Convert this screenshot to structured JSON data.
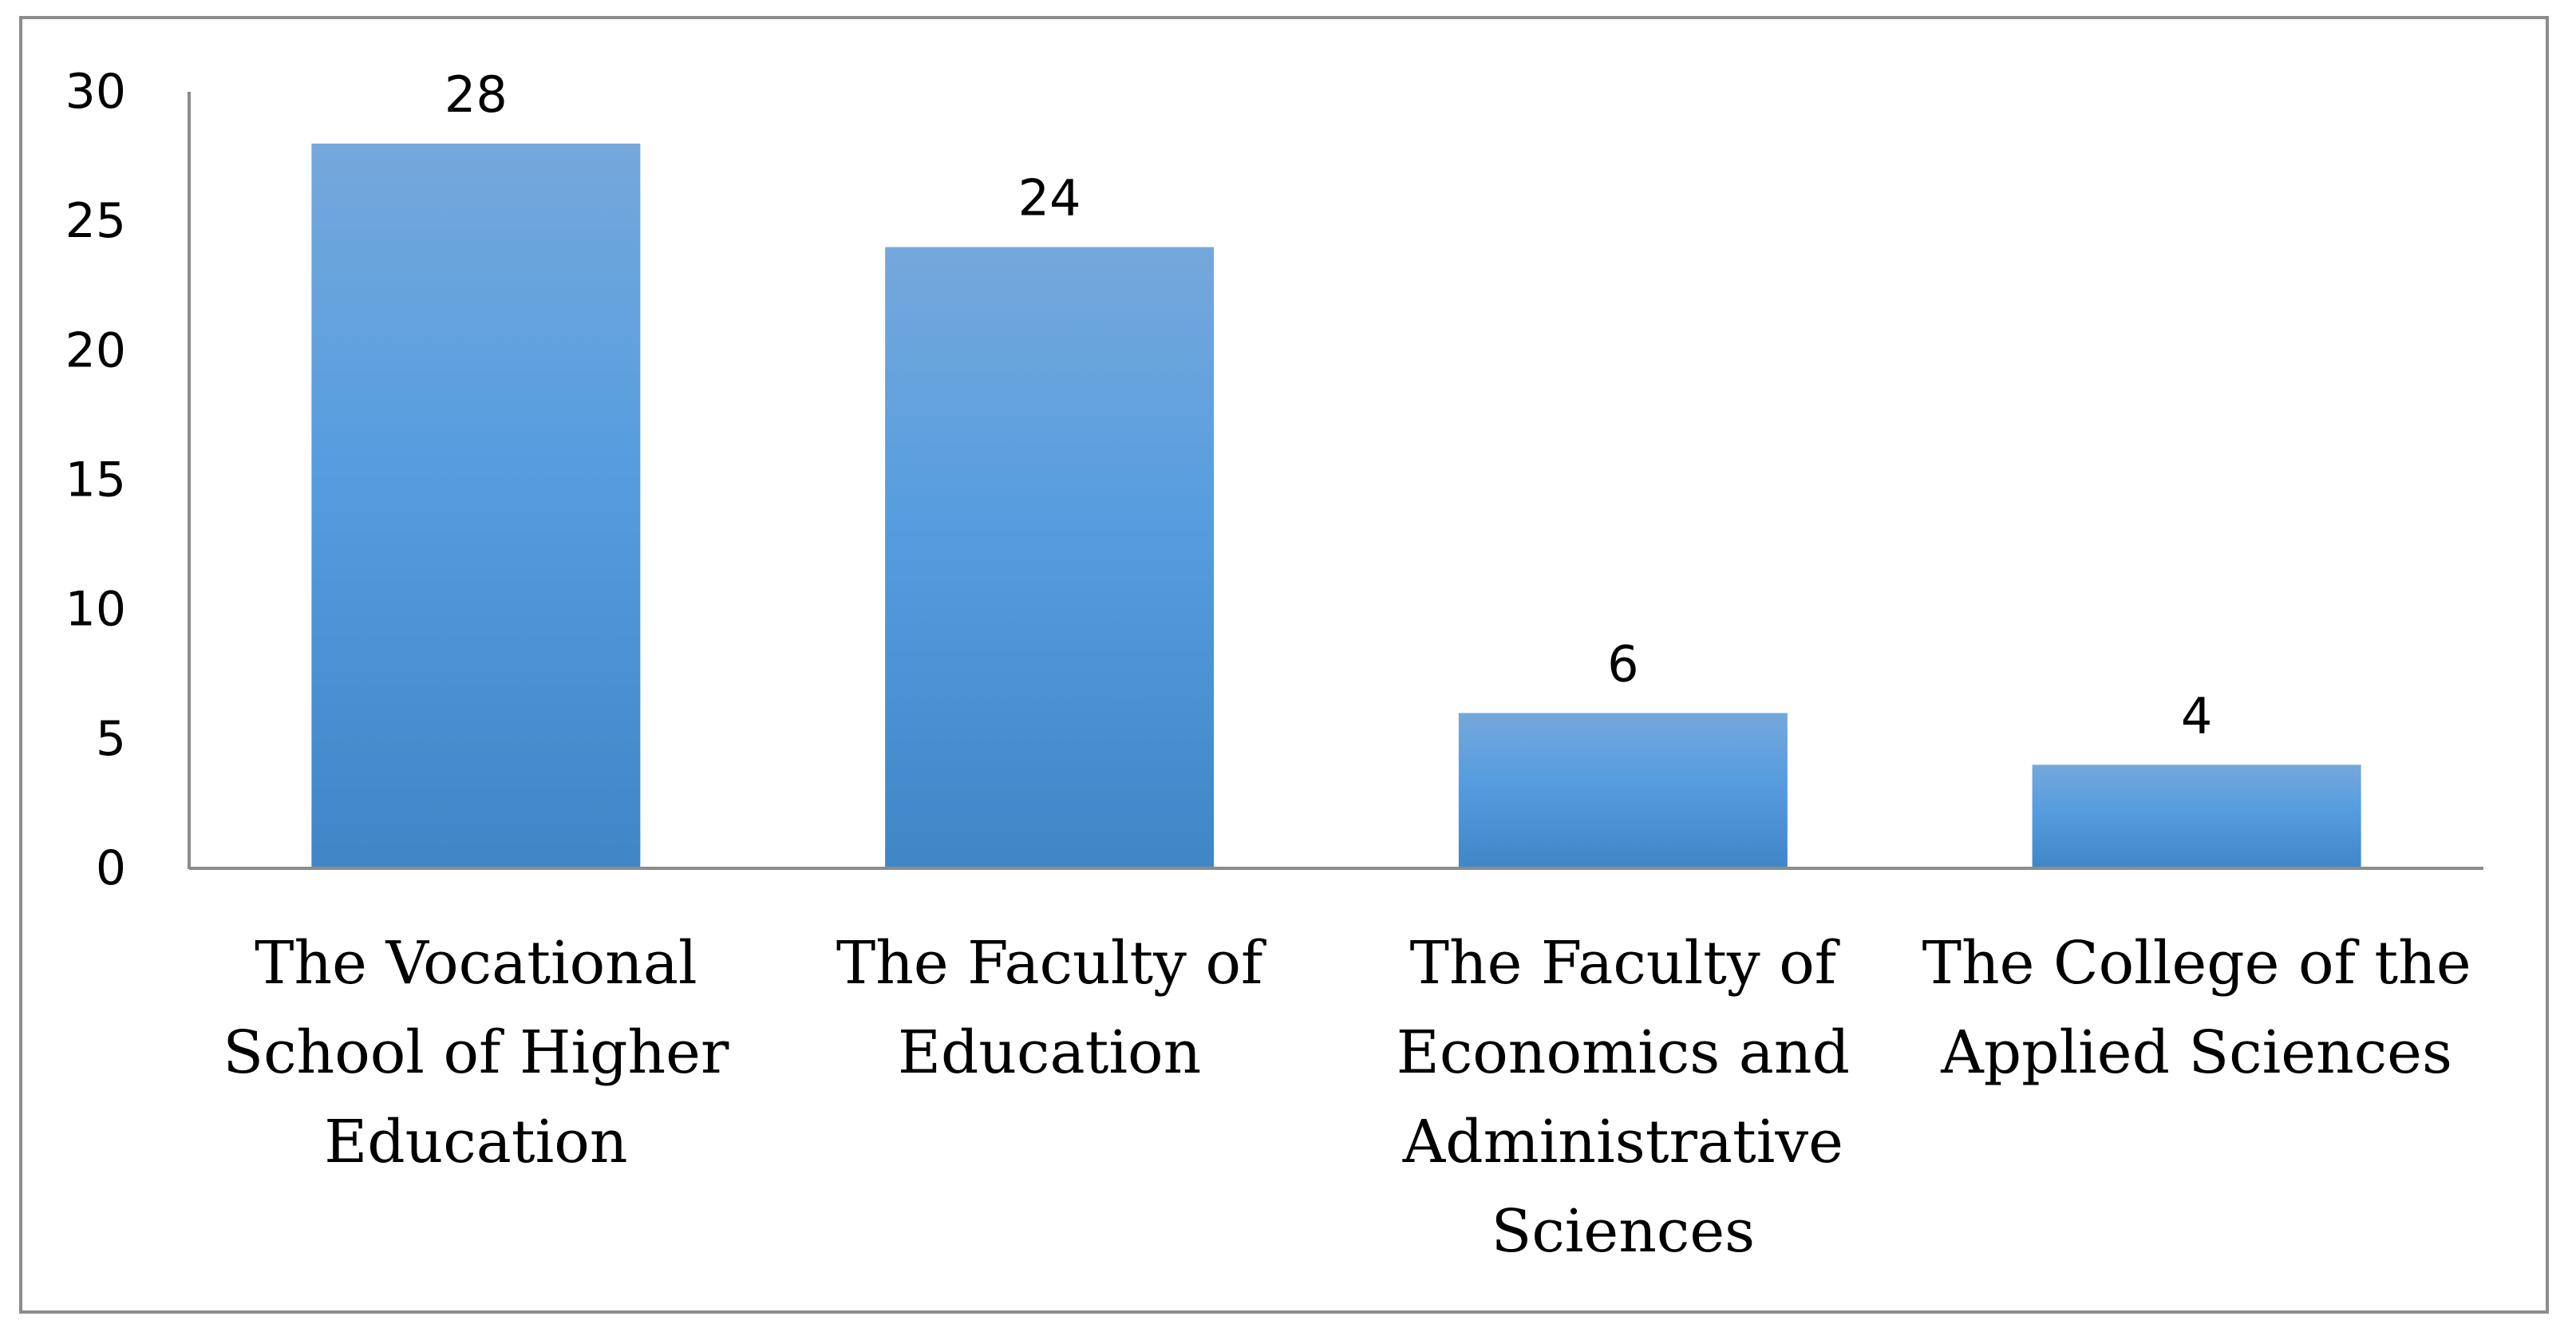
{
  "colors": {
    "bar_top": "#75a8dc",
    "bar_mid": "#559ddf",
    "bar_bottom": "#3f86c7",
    "axis": "#8c8c8c"
  },
  "chart_data": {
    "type": "bar",
    "categories": [
      [
        "The Vocational",
        "School of Higher",
        "Education"
      ],
      [
        "The Faculty of",
        "Education"
      ],
      [
        "The Faculty of",
        "Economics and",
        "Administrative",
        "Sciences"
      ],
      [
        "The College of the",
        "Applied Sciences"
      ]
    ],
    "values": [
      28,
      24,
      6,
      4
    ],
    "data_labels": [
      "28",
      "24",
      "6",
      "4"
    ],
    "ylim": [
      0,
      30
    ],
    "yticks": [
      0,
      5,
      10,
      15,
      20,
      25,
      30
    ],
    "title": "",
    "xlabel": "",
    "ylabel": "",
    "grid": false,
    "legend": "none"
  }
}
